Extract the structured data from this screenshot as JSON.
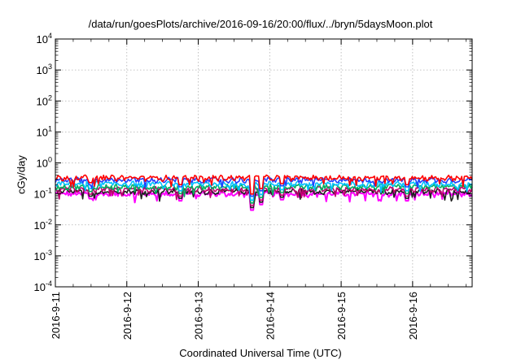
{
  "chart_data": {
    "type": "line",
    "title": "/data/run/goesPlots/archive/2016-09-16/20:00/flux/../bryn/5daysMoon.plot",
    "xlabel": "Coordinated Universal Time (UTC)",
    "ylabel": "cGy/day",
    "yscale": "log",
    "ylim": [
      0.0001,
      10000
    ],
    "yticks": [
      {
        "value": 0.0001,
        "base": "10",
        "exp": "-4"
      },
      {
        "value": 0.001,
        "base": "10",
        "exp": "-3"
      },
      {
        "value": 0.01,
        "base": "10",
        "exp": "-2"
      },
      {
        "value": 0.1,
        "base": "10",
        "exp": "-1"
      },
      {
        "value": 1,
        "base": "10",
        "exp": "0"
      },
      {
        "value": 10,
        "base": "10",
        "exp": "1"
      },
      {
        "value": 100,
        "base": "10",
        "exp": "2"
      },
      {
        "value": 1000,
        "base": "10",
        "exp": "3"
      },
      {
        "value": 10000,
        "base": "10",
        "exp": "4"
      }
    ],
    "xlim": [
      "2016-09-11",
      "2016-09-16 20:00"
    ],
    "xticks": [
      "2016-9-11",
      "2016-9-12",
      "2016-9-13",
      "2016-9-14",
      "2016-9-15",
      "2016-9-16"
    ],
    "grid": true,
    "series": [
      {
        "color": "#ff0000",
        "level": 0.33
      },
      {
        "color": "#2040ff",
        "level": 0.28
      },
      {
        "color": "#00c0ff",
        "level": 0.21
      },
      {
        "color": "#00b060",
        "level": 0.17
      },
      {
        "color": "#c00070",
        "level": 0.14
      },
      {
        "color": "#202020",
        "level": 0.12
      },
      {
        "color": "#ff00ff",
        "level": 0.1
      }
    ],
    "dips": [
      {
        "x": "2016-09-13 18:00",
        "value": 0.03
      },
      {
        "x": "2016-09-13 21:00",
        "value": 0.045
      },
      {
        "x": "2016-09-11 12:00",
        "value": 0.07
      },
      {
        "x": "2016-09-12 18:00",
        "value": 0.06
      },
      {
        "x": "2016-09-15 22:00",
        "value": 0.06
      },
      {
        "x": "2016-09-14 04:00",
        "value": 0.065
      }
    ]
  }
}
